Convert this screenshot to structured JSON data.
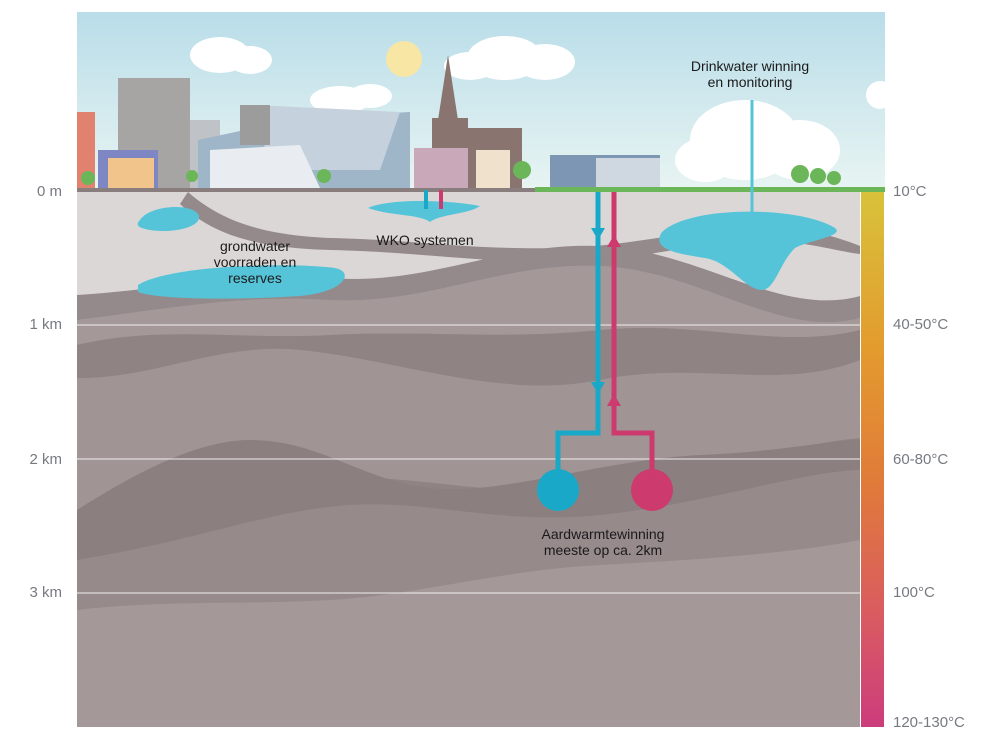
{
  "depth_axis": {
    "labels": [
      "0 m",
      "1 km",
      "2 km",
      "3 km"
    ]
  },
  "temperature_axis": {
    "labels": [
      {
        "value": "10",
        "unit": "°C"
      },
      {
        "value": "40-50",
        "unit": "°C"
      },
      {
        "value": "60-80",
        "unit": "°C"
      },
      {
        "value": "100",
        "unit": "°C"
      },
      {
        "value": "120-130",
        "unit": "°C"
      }
    ],
    "gradient_colors": [
      "#d8c23a",
      "#e39a2e",
      "#e07a3a",
      "#d95a62",
      "#cc3c7c"
    ]
  },
  "annotations": {
    "drinking_water": [
      "Drinkwater winning",
      "en monitoring"
    ],
    "groundwater": [
      "grondwater",
      "voorraden en",
      "reserves"
    ],
    "wko": "WKO systemen",
    "geothermal": [
      "Aardwarmtewinning",
      "meeste op ca. 2km"
    ]
  },
  "colors": {
    "cold_water": "#1aa8c8",
    "hot_water": "#cc3a6e",
    "groundwater": "#56c4d8",
    "grass": "#6cb65a",
    "sky": "#cfe8f0"
  }
}
